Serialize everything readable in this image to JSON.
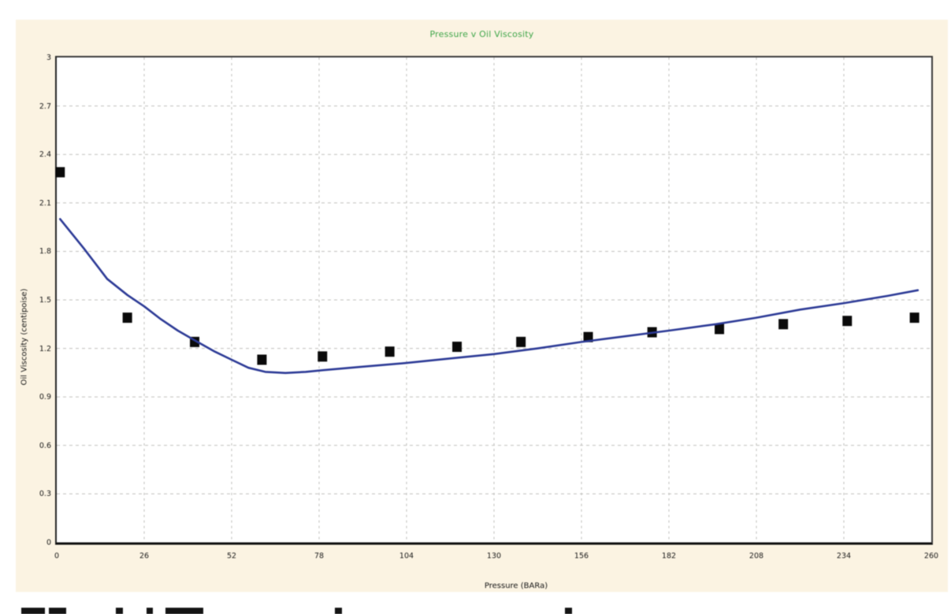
{
  "chart": {
    "panel_background": "#fbf3e2",
    "plot_background": "#ffffff",
    "title_color": "#3fa649",
    "gridline_color": "#c0bfbc",
    "axis_border_color": "#2a2a2a",
    "tick_label_color": "#1a1a1a"
  },
  "chart_data": {
    "type": "line+scatter",
    "title": "Pressure v Oil Viscosity",
    "xlabel": "Pressure  (BARa)",
    "ylabel": "Oil Viscosity  (centipoise)",
    "xlim": [
      0,
      260
    ],
    "ylim": [
      0,
      3
    ],
    "xticks": [
      0,
      26,
      52,
      78,
      104,
      130,
      156,
      182,
      208,
      234,
      260
    ],
    "yticks": [
      0,
      0.3,
      0.6,
      0.9,
      1.2,
      1.5,
      1.8,
      2.1,
      2.4,
      2.7,
      3
    ],
    "grid": "dashed",
    "legend": "none",
    "series": [
      {
        "name": "measured-viscosity-points",
        "type": "scatter",
        "marker": "black-square",
        "color": "#0a0a0a",
        "points": [
          [
            1,
            2.29
          ],
          [
            21,
            1.39
          ],
          [
            41,
            1.24
          ],
          [
            61,
            1.13
          ],
          [
            79,
            1.15
          ],
          [
            99,
            1.18
          ],
          [
            119,
            1.21
          ],
          [
            138,
            1.24
          ],
          [
            158,
            1.27
          ],
          [
            177,
            1.3
          ],
          [
            197,
            1.32
          ],
          [
            216,
            1.35
          ],
          [
            235,
            1.37
          ],
          [
            255,
            1.39
          ]
        ]
      },
      {
        "name": "correlation-curve",
        "type": "line",
        "color": "#2c3a96",
        "points": [
          [
            1,
            2.0
          ],
          [
            8,
            1.82
          ],
          [
            15,
            1.63
          ],
          [
            21,
            1.53
          ],
          [
            26,
            1.46
          ],
          [
            31,
            1.38
          ],
          [
            36,
            1.31
          ],
          [
            41,
            1.25
          ],
          [
            47,
            1.18
          ],
          [
            52,
            1.13
          ],
          [
            57,
            1.08
          ],
          [
            62,
            1.055
          ],
          [
            68,
            1.048
          ],
          [
            74,
            1.055
          ],
          [
            79,
            1.065
          ],
          [
            90,
            1.085
          ],
          [
            104,
            1.11
          ],
          [
            118,
            1.14
          ],
          [
            130,
            1.165
          ],
          [
            143,
            1.2
          ],
          [
            156,
            1.24
          ],
          [
            169,
            1.275
          ],
          [
            182,
            1.31
          ],
          [
            196,
            1.35
          ],
          [
            208,
            1.39
          ],
          [
            221,
            1.44
          ],
          [
            234,
            1.48
          ],
          [
            247,
            1.525
          ],
          [
            256,
            1.56
          ]
        ]
      }
    ]
  },
  "bottom_caption": {
    "note": "large caption text cut off at bottom edge of screenshot",
    "fragments": [
      [
        27,
        30
      ],
      [
        62,
        22
      ],
      [
        147,
        9
      ],
      [
        186,
        8
      ],
      [
        210,
        48
      ],
      [
        425,
        9
      ],
      [
        717,
        9
      ]
    ]
  }
}
